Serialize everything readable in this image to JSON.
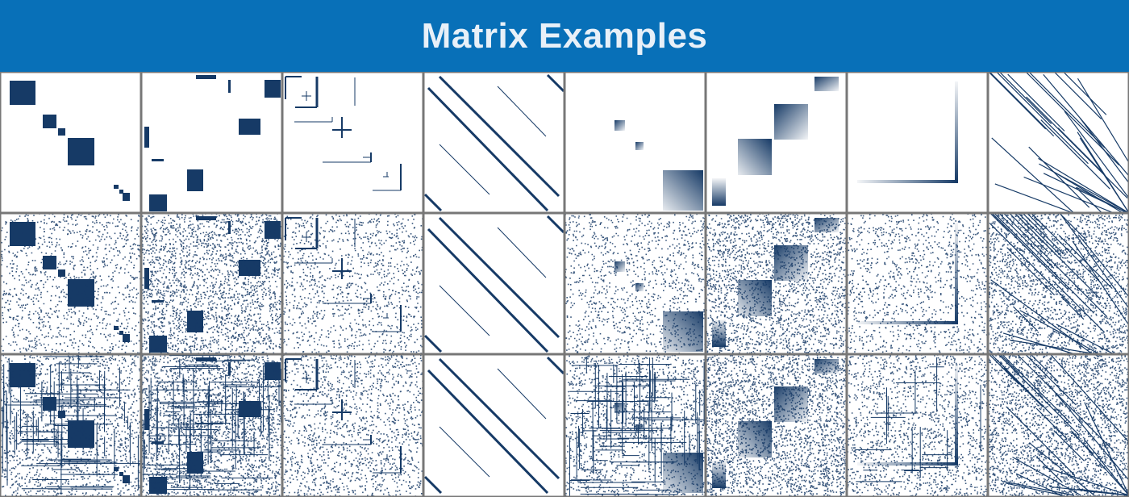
{
  "title": "Matrix Examples",
  "colors": {
    "header_bg": "#0870b8",
    "mark": "#163a66",
    "border": "#777777",
    "background": "#ffffff"
  },
  "grid": {
    "rows": 3,
    "columns": 8
  },
  "row_variants": [
    "clean",
    "noisy",
    "noisy-permuted"
  ],
  "column_patterns": [
    "diagonal-blocks",
    "off-diagonal-blocks",
    "nested-l-shapes",
    "parallel-diagonal-bands",
    "fading-small-blocks",
    "overlapping-gradient-blocks",
    "bottom-right-corner-lines",
    "many-diagonal-streaks"
  ]
}
